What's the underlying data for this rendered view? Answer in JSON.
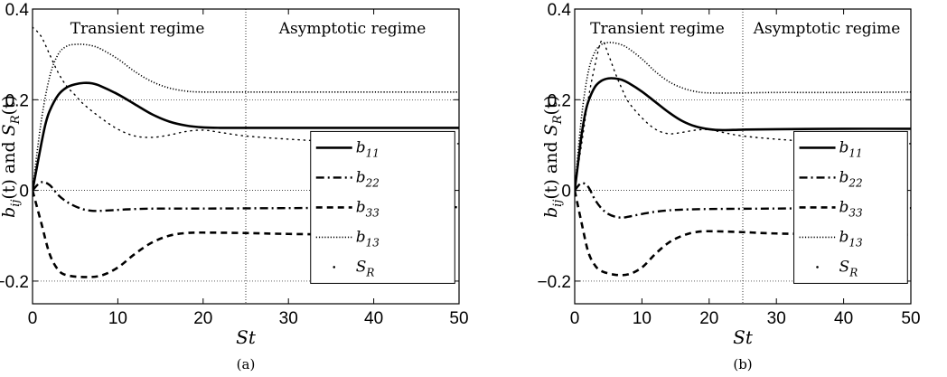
{
  "chart_data": [
    {
      "type": "line",
      "caption": "(a)",
      "xlabel": "St",
      "ylabel_parts": {
        "b": "b",
        "ij": "ij",
        "mid": "(t) and ",
        "S": "S",
        "R": "R",
        "end": "(t)"
      },
      "xlim": [
        0,
        50
      ],
      "ylim": [
        -0.25,
        0.4
      ],
      "x_ticks": [
        0,
        10,
        20,
        30,
        40,
        50
      ],
      "y_ticks": [
        -0.2,
        0,
        0.2,
        0.4
      ],
      "y_tick_labels": [
        "−0.2",
        "0",
        "0.2",
        "0.4"
      ],
      "grid": true,
      "regime_divider_x": 25,
      "annotations": [
        "Transient regime",
        "Asymptotic regime"
      ],
      "legend_position": "right",
      "series": [
        {
          "name": "b",
          "sub": "11",
          "style": "solid",
          "points": [
            [
              0,
              0
            ],
            [
              0.5,
              0.05
            ],
            [
              1,
              0.1
            ],
            [
              1.5,
              0.145
            ],
            [
              2,
              0.175
            ],
            [
              3,
              0.21
            ],
            [
              4,
              0.227
            ],
            [
              5,
              0.234
            ],
            [
              6,
              0.237
            ],
            [
              7,
              0.236
            ],
            [
              8,
              0.23
            ],
            [
              10,
              0.212
            ],
            [
              12,
              0.19
            ],
            [
              14,
              0.168
            ],
            [
              16,
              0.152
            ],
            [
              18,
              0.143
            ],
            [
              20,
              0.139
            ],
            [
              22,
              0.138
            ],
            [
              25,
              0.138
            ],
            [
              30,
              0.138
            ],
            [
              40,
              0.138
            ],
            [
              50,
              0.138
            ]
          ]
        },
        {
          "name": "b",
          "sub": "22",
          "style": "dashdot",
          "points": [
            [
              0,
              0
            ],
            [
              1,
              0.018
            ],
            [
              2,
              0.012
            ],
            [
              3,
              -0.01
            ],
            [
              4,
              -0.025
            ],
            [
              5,
              -0.035
            ],
            [
              6,
              -0.042
            ],
            [
              7,
              -0.045
            ],
            [
              8,
              -0.045
            ],
            [
              10,
              -0.043
            ],
            [
              12,
              -0.041
            ],
            [
              15,
              -0.04
            ],
            [
              20,
              -0.04
            ],
            [
              30,
              -0.039
            ],
            [
              40,
              -0.038
            ],
            [
              50,
              -0.037
            ]
          ]
        },
        {
          "name": "b",
          "sub": "33",
          "style": "dashed",
          "points": [
            [
              0,
              0
            ],
            [
              1,
              -0.07
            ],
            [
              2,
              -0.14
            ],
            [
              3,
              -0.175
            ],
            [
              4,
              -0.187
            ],
            [
              6,
              -0.191
            ],
            [
              8,
              -0.188
            ],
            [
              10,
              -0.17
            ],
            [
              12,
              -0.14
            ],
            [
              14,
              -0.115
            ],
            [
              16,
              -0.1
            ],
            [
              18,
              -0.094
            ],
            [
              20,
              -0.093
            ],
            [
              25,
              -0.094
            ],
            [
              30,
              -0.096
            ],
            [
              40,
              -0.098
            ],
            [
              50,
              -0.098
            ]
          ]
        },
        {
          "name": "b",
          "sub": "13",
          "style": "dotted",
          "points": [
            [
              0,
              0
            ],
            [
              1,
              0.15
            ],
            [
              2,
              0.25
            ],
            [
              3,
              0.3
            ],
            [
              4,
              0.318
            ],
            [
              5,
              0.322
            ],
            [
              6,
              0.322
            ],
            [
              7,
              0.319
            ],
            [
              8,
              0.312
            ],
            [
              10,
              0.29
            ],
            [
              12,
              0.262
            ],
            [
              14,
              0.24
            ],
            [
              16,
              0.226
            ],
            [
              18,
              0.219
            ],
            [
              20,
              0.217
            ],
            [
              25,
              0.217
            ],
            [
              30,
              0.217
            ],
            [
              40,
              0.217
            ],
            [
              50,
              0.217
            ]
          ]
        },
        {
          "name": "S",
          "sub": "R",
          "style": "point",
          "points": [
            [
              0,
              0.36
            ],
            [
              1,
              0.34
            ],
            [
              2,
              0.3
            ],
            [
              3,
              0.26
            ],
            [
              4,
              0.23
            ],
            [
              5,
              0.21
            ],
            [
              6,
              0.19
            ],
            [
              8,
              0.16
            ],
            [
              10,
              0.135
            ],
            [
              12,
              0.12
            ],
            [
              14,
              0.117
            ],
            [
              16,
              0.122
            ],
            [
              18,
              0.13
            ],
            [
              20,
              0.133
            ],
            [
              22,
              0.128
            ],
            [
              25,
              0.12
            ],
            [
              30,
              0.113
            ],
            [
              35,
              0.108
            ],
            [
              40,
              0.105
            ],
            [
              45,
              0.104
            ],
            [
              50,
              0.103
            ]
          ]
        }
      ]
    },
    {
      "type": "line",
      "caption": "(b)",
      "xlabel": "St",
      "ylabel_parts": {
        "b": "b",
        "ij": "ij",
        "mid": "(t) and ",
        "S": "S",
        "R": "R",
        "end": "(t)"
      },
      "xlim": [
        0,
        50
      ],
      "ylim": [
        -0.25,
        0.4
      ],
      "x_ticks": [
        0,
        10,
        20,
        30,
        40,
        50
      ],
      "y_ticks": [
        -0.2,
        0,
        0.2,
        0.4
      ],
      "y_tick_labels": [
        "−0.2",
        "0",
        "0.2",
        "0.4"
      ],
      "grid": true,
      "regime_divider_x": 25,
      "annotations": [
        "Transient regime",
        "Asymptotic regime"
      ],
      "legend_position": "right",
      "series": [
        {
          "name": "b",
          "sub": "11",
          "style": "solid",
          "points": [
            [
              0,
              0
            ],
            [
              0.5,
              0.06
            ],
            [
              1,
              0.12
            ],
            [
              1.5,
              0.165
            ],
            [
              2,
              0.195
            ],
            [
              3,
              0.228
            ],
            [
              4,
              0.242
            ],
            [
              5,
              0.247
            ],
            [
              6,
              0.247
            ],
            [
              7,
              0.244
            ],
            [
              8,
              0.237
            ],
            [
              10,
              0.218
            ],
            [
              12,
              0.195
            ],
            [
              14,
              0.172
            ],
            [
              16,
              0.153
            ],
            [
              18,
              0.141
            ],
            [
              20,
              0.135
            ],
            [
              22,
              0.133
            ],
            [
              25,
              0.134
            ],
            [
              30,
              0.135
            ],
            [
              40,
              0.136
            ],
            [
              50,
              0.136
            ]
          ]
        },
        {
          "name": "b",
          "sub": "22",
          "style": "dashdot",
          "points": [
            [
              0,
              0
            ],
            [
              1,
              0.016
            ],
            [
              2,
              0.008
            ],
            [
              3,
              -0.02
            ],
            [
              4,
              -0.04
            ],
            [
              5,
              -0.052
            ],
            [
              6,
              -0.058
            ],
            [
              7,
              -0.06
            ],
            [
              8,
              -0.058
            ],
            [
              10,
              -0.052
            ],
            [
              12,
              -0.047
            ],
            [
              15,
              -0.043
            ],
            [
              20,
              -0.041
            ],
            [
              30,
              -0.04
            ],
            [
              40,
              -0.039
            ],
            [
              50,
              -0.039
            ]
          ]
        },
        {
          "name": "b",
          "sub": "33",
          "style": "dashed",
          "points": [
            [
              0,
              0
            ],
            [
              1,
              -0.07
            ],
            [
              2,
              -0.135
            ],
            [
              3,
              -0.165
            ],
            [
              4,
              -0.178
            ],
            [
              6,
              -0.186
            ],
            [
              8,
              -0.185
            ],
            [
              10,
              -0.17
            ],
            [
              12,
              -0.14
            ],
            [
              14,
              -0.115
            ],
            [
              16,
              -0.1
            ],
            [
              18,
              -0.092
            ],
            [
              20,
              -0.09
            ],
            [
              25,
              -0.092
            ],
            [
              30,
              -0.095
            ],
            [
              40,
              -0.097
            ],
            [
              50,
              -0.098
            ]
          ]
        },
        {
          "name": "b",
          "sub": "13",
          "style": "dotted",
          "points": [
            [
              0,
              0
            ],
            [
              1,
              0.16
            ],
            [
              2,
              0.26
            ],
            [
              3,
              0.305
            ],
            [
              4,
              0.322
            ],
            [
              5,
              0.326
            ],
            [
              6,
              0.325
            ],
            [
              7,
              0.321
            ],
            [
              8,
              0.313
            ],
            [
              10,
              0.29
            ],
            [
              12,
              0.262
            ],
            [
              14,
              0.24
            ],
            [
              16,
              0.226
            ],
            [
              18,
              0.218
            ],
            [
              20,
              0.215
            ],
            [
              25,
              0.215
            ],
            [
              30,
              0.216
            ],
            [
              40,
              0.216
            ],
            [
              50,
              0.217
            ]
          ]
        },
        {
          "name": "S",
          "sub": "R",
          "style": "point",
          "points": [
            [
              0,
              0.005
            ],
            [
              1,
              0.1
            ],
            [
              2,
              0.2
            ],
            [
              3,
              0.275
            ],
            [
              4,
              0.33
            ],
            [
              5,
              0.3
            ],
            [
              6,
              0.26
            ],
            [
              7,
              0.225
            ],
            [
              8,
              0.195
            ],
            [
              10,
              0.16
            ],
            [
              12,
              0.135
            ],
            [
              14,
              0.125
            ],
            [
              16,
              0.128
            ],
            [
              18,
              0.133
            ],
            [
              20,
              0.134
            ],
            [
              22,
              0.128
            ],
            [
              25,
              0.12
            ],
            [
              30,
              0.113
            ],
            [
              35,
              0.108
            ],
            [
              40,
              0.105
            ],
            [
              45,
              0.104
            ],
            [
              50,
              0.103
            ]
          ]
        }
      ]
    }
  ]
}
